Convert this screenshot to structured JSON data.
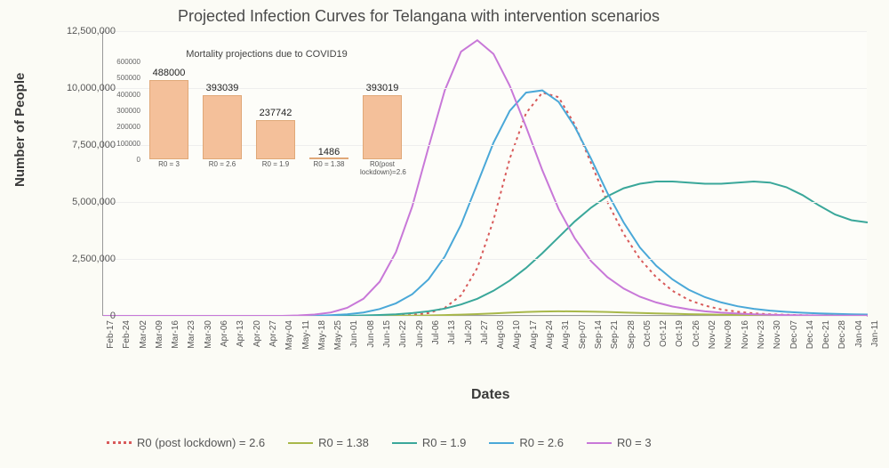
{
  "title": "Projected Infection Curves for Telangana with intervention scenarios",
  "ylabel": "Number of People",
  "xlabel": "Dates",
  "main_chart": {
    "type": "line",
    "background_color": "#fdfdf9",
    "grid_color": "#eeeeee",
    "ylim": [
      0,
      12500000
    ],
    "yticks": [
      0,
      2500000,
      5000000,
      7500000,
      10000000,
      12500000
    ],
    "ytick_labels": [
      "0",
      "2,500,000",
      "5,000,000",
      "7,500,000",
      "10,000,000",
      "12,500,000"
    ],
    "x_categories": [
      "Feb-17",
      "Feb-24",
      "Mar-02",
      "Mar-09",
      "Mar-16",
      "Mar-23",
      "Mar-30",
      "Apr-06",
      "Apr-13",
      "Apr-20",
      "Apr-27",
      "May-04",
      "May-11",
      "May-18",
      "May-25",
      "Jun-01",
      "Jun-08",
      "Jun-15",
      "Jun-22",
      "Jun-29",
      "Jul-06",
      "Jul-13",
      "Jul-20",
      "Jul-27",
      "Aug-03",
      "Aug-10",
      "Aug-17",
      "Aug-24",
      "Aug-31",
      "Sep-07",
      "Sep-14",
      "Sep-21",
      "Sep-28",
      "Oct-05",
      "Oct-12",
      "Oct-19",
      "Oct-26",
      "Nov-02",
      "Nov-09",
      "Nov-16",
      "Nov-23",
      "Nov-30",
      "Dec-07",
      "Dec-14",
      "Dec-21",
      "Dec-28",
      "Jan-04",
      "Jan-11"
    ],
    "series": [
      {
        "name": "R0 (post lockdown) = 2.6",
        "color": "#d85a5a",
        "dash": "dotted",
        "line_width": 2,
        "values": [
          0,
          0,
          0,
          0,
          0,
          0,
          0,
          0,
          0,
          0,
          0,
          0,
          0,
          0,
          0,
          0,
          0,
          0,
          0,
          40000,
          120000,
          350000,
          900000,
          2100000,
          4200000,
          6900000,
          8900000,
          9800000,
          9600000,
          8400000,
          6700000,
          5000000,
          3600000,
          2500000,
          1700000,
          1100000,
          700000,
          450000,
          280000,
          180000,
          110000,
          70000,
          45000,
          28000,
          18000,
          11000,
          7000,
          5000
        ]
      },
      {
        "name": "R0 = 1.38",
        "color": "#a8b84a",
        "dash": "solid",
        "line_width": 2,
        "values": [
          0,
          0,
          0,
          0,
          0,
          0,
          0,
          0,
          0,
          0,
          0,
          0,
          0,
          0,
          0,
          0,
          0,
          0,
          0,
          10000,
          20000,
          35000,
          55000,
          80000,
          110000,
          140000,
          170000,
          190000,
          200000,
          195000,
          185000,
          170000,
          150000,
          130000,
          110000,
          92000,
          76000,
          62000,
          50000,
          40000,
          32000,
          26000,
          21000,
          17000,
          14000,
          11000,
          9000,
          7000
        ]
      },
      {
        "name": "R0 = 1.9",
        "color": "#3aa79a",
        "dash": "solid",
        "line_width": 2,
        "values": [
          0,
          0,
          0,
          0,
          0,
          0,
          0,
          0,
          0,
          0,
          0,
          0,
          0,
          0,
          0,
          0,
          20000,
          40000,
          70000,
          120000,
          200000,
          320000,
          500000,
          750000,
          1100000,
          1550000,
          2100000,
          2750000,
          3450000,
          4150000,
          4750000,
          5250000,
          5600000,
          5800000,
          5900000,
          5900000,
          5850000,
          5800000,
          5800000,
          5850000,
          5900000,
          5850000,
          5650000,
          5300000,
          4850000,
          4450000,
          4200000,
          4100000
        ]
      },
      {
        "name": "R0 = 2.6",
        "color": "#4aa8d8",
        "dash": "solid",
        "line_width": 2,
        "values": [
          0,
          0,
          0,
          0,
          0,
          0,
          0,
          0,
          0,
          0,
          0,
          0,
          0,
          0,
          30000,
          70000,
          150000,
          300000,
          550000,
          950000,
          1600000,
          2600000,
          4000000,
          5800000,
          7600000,
          9000000,
          9800000,
          9900000,
          9400000,
          8300000,
          6900000,
          5400000,
          4100000,
          3000000,
          2200000,
          1600000,
          1150000,
          820000,
          590000,
          420000,
          310000,
          230000,
          175000,
          135000,
          105000,
          85000,
          70000,
          60000
        ]
      },
      {
        "name": "R0 = 3",
        "color": "#c878d8",
        "dash": "solid",
        "line_width": 2,
        "values": [
          0,
          0,
          0,
          0,
          0,
          0,
          0,
          0,
          0,
          0,
          0,
          0,
          20000,
          60000,
          150000,
          350000,
          750000,
          1500000,
          2800000,
          4800000,
          7400000,
          9900000,
          11600000,
          12100000,
          11500000,
          10100000,
          8300000,
          6400000,
          4700000,
          3400000,
          2400000,
          1700000,
          1200000,
          840000,
          590000,
          410000,
          290000,
          200000,
          140000,
          100000,
          70000,
          50000,
          35000,
          25000,
          18000,
          13000,
          9000,
          7000
        ]
      }
    ]
  },
  "inset_chart": {
    "type": "bar",
    "title": "Mortality projections due to COVID19",
    "bar_color": "#f4c09a",
    "bar_border_color": "#e0a878",
    "ylim": [
      0,
      600000
    ],
    "yticks": [
      0,
      100000,
      200000,
      300000,
      400000,
      500000,
      600000
    ],
    "categories": [
      "R0 = 3",
      "R0 = 2.6",
      "R0 = 1.9",
      "R0 = 1.38",
      "R0(post lockdown)=2.6"
    ],
    "values": [
      488000,
      393039,
      237742,
      1486,
      393019
    ],
    "value_labels": [
      "488000",
      "393039",
      "237742",
      "1486",
      "393019"
    ]
  },
  "legend": {
    "items": [
      {
        "label": "R0 (post lockdown) = 2.6",
        "color": "#d85a5a",
        "style": "dotted"
      },
      {
        "label": "R0 = 1.38",
        "color": "#a8b84a",
        "style": "solid"
      },
      {
        "label": "R0 = 1.9",
        "color": "#3aa79a",
        "style": "solid"
      },
      {
        "label": "R0 = 2.6",
        "color": "#4aa8d8",
        "style": "solid"
      },
      {
        "label": "R0 = 3",
        "color": "#c878d8",
        "style": "solid"
      }
    ]
  }
}
